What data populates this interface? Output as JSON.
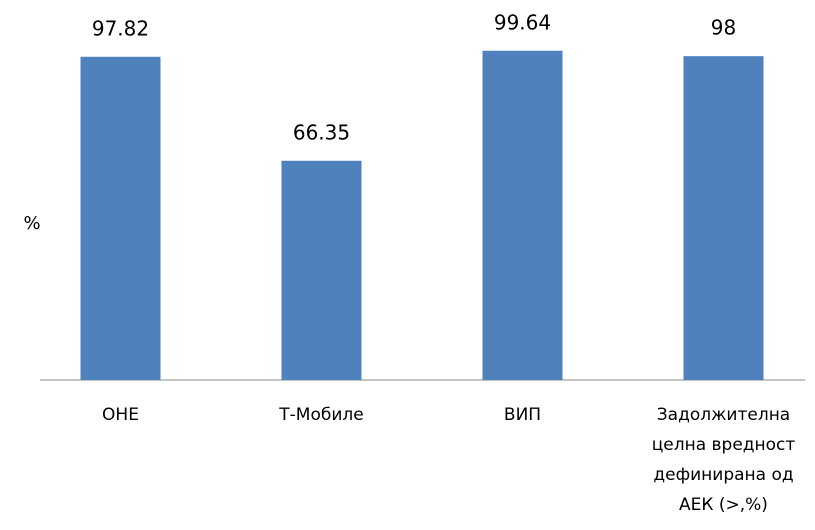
{
  "chart_data": {
    "type": "bar",
    "y_label": "%",
    "categories": [
      "ОНЕ",
      "Т-Мобиле",
      "ВИП",
      "Задолжителна целна вредност дефинирана од АЕК (>,%)"
    ],
    "values": [
      97.82,
      66.35,
      99.64,
      98
    ],
    "color": "#4f81bd",
    "ylim": [
      0,
      115
    ]
  }
}
